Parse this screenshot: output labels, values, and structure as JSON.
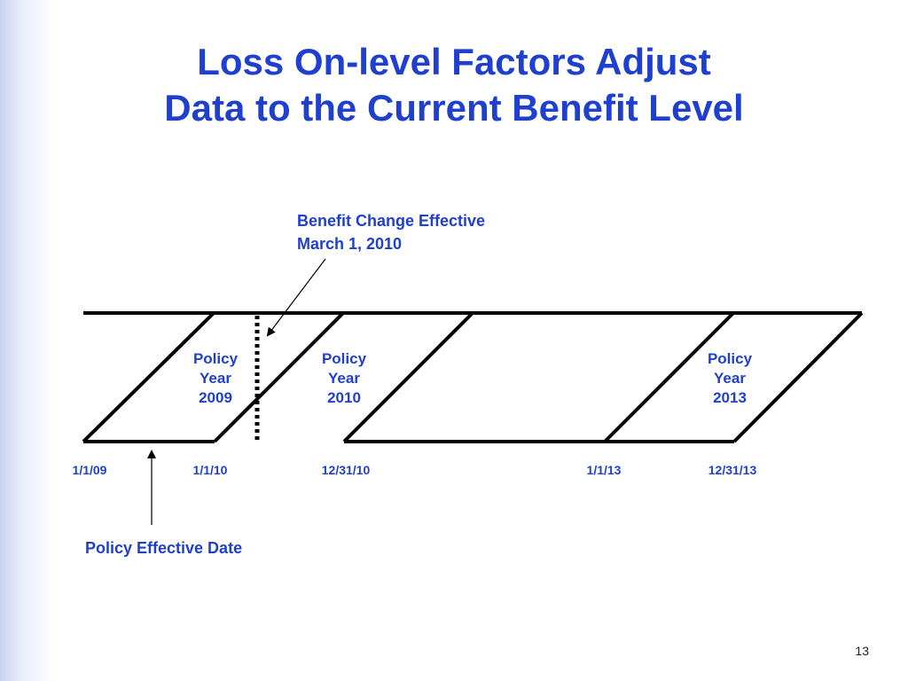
{
  "slide": {
    "title_line1": "Loss On-level Factors Adjust",
    "title_line2": "Data to the Current Benefit Level",
    "page_number": "13"
  },
  "benefit_change": {
    "line1": "Benefit Change Effective",
    "line2": "March 1, 2010"
  },
  "policy_effective_label": "Policy Effective Date",
  "policy_years": [
    {
      "line1": "Policy",
      "line2": "Year",
      "line3": "2009"
    },
    {
      "line1": "Policy",
      "line2": "Year",
      "line3": "2010"
    },
    {
      "line1": "Policy",
      "line2": "Year",
      "line3": "2013"
    }
  ],
  "dates": [
    "1/1/09",
    "1/1/10",
    "12/31/10",
    "1/1/13",
    "12/31/13"
  ],
  "colors": {
    "accent": "#1f3fcf",
    "line": "#000000"
  }
}
